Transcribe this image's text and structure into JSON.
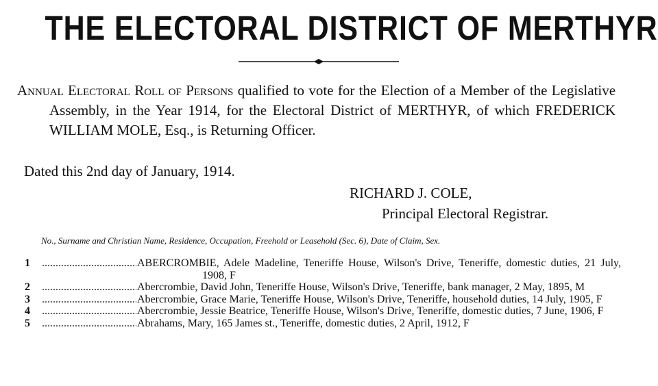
{
  "header": {
    "title": "THE ELECTORAL DISTRICT OF MERTHYR."
  },
  "intro": {
    "lead": "Annual Electoral Roll of Persons",
    "rest": "qualified to vote for the Election of a Member of the Legislative Assembly, in the Year 1914, for the Electoral District of MERTHYR, of which FREDERICK WILLIAM MOLE, Esq., is Returning Officer."
  },
  "dated": "Dated this 2nd day of January, 1914.",
  "signature": {
    "name": "RICHARD J. COLE,",
    "role": "Principal Electoral Registrar."
  },
  "columns": "No., Surname and Christian Name, Residence, Occupation, Freehold or Leasehold (Sec. 6), Date of Claim, Sex.",
  "entries": [
    {
      "number": "1",
      "text": "ABERCROMBIE, Adele Madeline, Teneriffe House, Wilson's Drive, Teneriffe, domestic duties, 21 July, 1908, F"
    },
    {
      "number": "2",
      "text": "Abercrombie, David John, Teneriffe House, Wilson's Drive, Teneriffe, bank manager, 2 May, 1895, M"
    },
    {
      "number": "3",
      "text": "Abercrombie, Grace Marie, Teneriffe House, Wilson's Drive, Teneriffe, household duties, 14 July, 1905, F"
    },
    {
      "number": "4",
      "text": "Abercrombie, Jessie Beatrice, Teneriffe House, Wilson's Drive, Teneriffe, domestic duties, 7 June, 1906, F"
    },
    {
      "number": "5",
      "text": "Abrahams, Mary, 165 James st., Teneriffe, domestic duties, 2 April, 1912, F"
    }
  ]
}
